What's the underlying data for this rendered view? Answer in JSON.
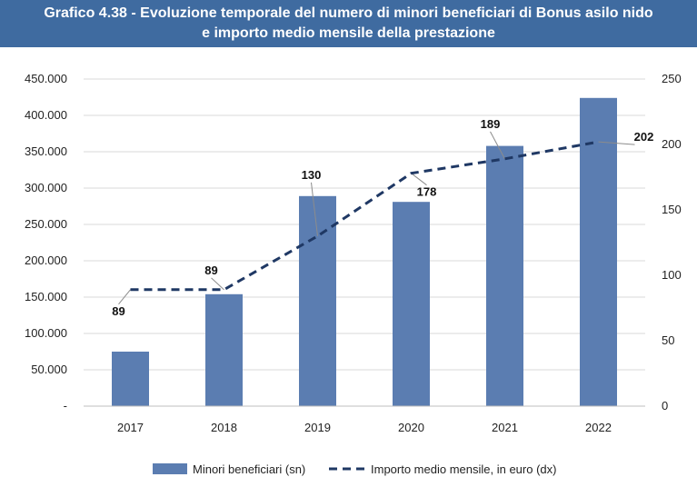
{
  "header": {
    "title_line1": "Grafico 4.38 - Evoluzione temporale del numero di minori beneficiari di Bonus asilo nido",
    "title_line2": "e importo medio mensile della prestazione"
  },
  "colors": {
    "header_bg": "#3f6ba0",
    "bar": "#5b7db1",
    "line": "#1f3864",
    "grid": "#d9d9d9"
  },
  "chart_data": {
    "type": "bar",
    "categories": [
      "2017",
      "2018",
      "2019",
      "2020",
      "2021",
      "2022"
    ],
    "series": [
      {
        "name": "Minori beneficiari (sn)",
        "type": "bar",
        "axis": "left",
        "values": [
          75000,
          154000,
          289000,
          281000,
          358000,
          424000
        ]
      },
      {
        "name": "Importo medio mensile, in euro (dx)",
        "type": "line",
        "style": "dashed",
        "axis": "right",
        "values": [
          89,
          89,
          130,
          178,
          189,
          202
        ],
        "labels": [
          "89",
          "89",
          "130",
          "178",
          "189",
          "202"
        ]
      }
    ],
    "y_left": {
      "ylim": [
        0,
        450000
      ],
      "ticks": [
        0,
        50000,
        100000,
        150000,
        200000,
        250000,
        300000,
        350000,
        400000,
        450000
      ],
      "tick_labels": [
        "-",
        "50.000",
        "100.000",
        "150.000",
        "200.000",
        "250.000",
        "300.000",
        "350.000",
        "400.000",
        "450.000"
      ]
    },
    "y_right": {
      "ylim": [
        0,
        250
      ],
      "ticks": [
        0,
        50,
        100,
        150,
        200,
        250
      ],
      "tick_labels": [
        "0",
        "50",
        "100",
        "150",
        "200",
        "250"
      ]
    },
    "grid": true,
    "legend_position": "bottom"
  }
}
